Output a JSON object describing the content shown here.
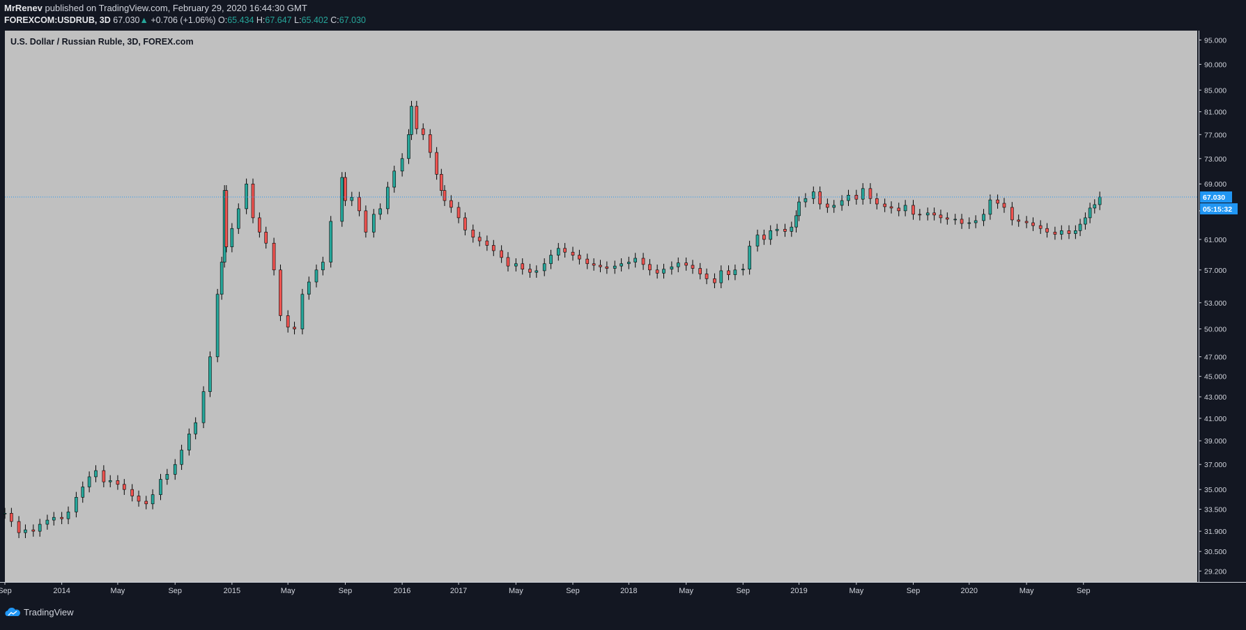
{
  "header": {
    "author": "MrRenev",
    "published_text": "published on TradingView.com, February 29, 2020 16:44:30 GMT",
    "symbol": "FOREXCOM:USDRUB, 3D",
    "last": "67.030",
    "arrow": "▲",
    "change": "+0.706 (+1.06%)",
    "o_label": "O:",
    "o_value": "65.434",
    "h_label": "H:",
    "h_value": "67.647",
    "l_label": "L:",
    "l_value": "65.402",
    "c_label": "C:",
    "c_value": "67.030"
  },
  "footer": {
    "brand": "TradingView"
  },
  "colors": {
    "page_bg": "#131722",
    "plot_bg": "#c0c0c0",
    "up": "#26a69a",
    "down": "#ef5350",
    "wick": "#000000",
    "price_line": "#2196f3",
    "price_label_bg": "#2196f3"
  },
  "chart_data": {
    "type": "candlestick",
    "title": "U.S. Dollar / Russian Ruble, 3D, FOREX.com",
    "y_scale": "log",
    "ylim": [
      28.5,
      97
    ],
    "y_ticks": [
      29.2,
      30.5,
      31.9,
      33.5,
      35.0,
      37.0,
      39.0,
      41.0,
      43.0,
      45.0,
      47.0,
      50.0,
      53.0,
      57.0,
      61.0,
      65.0,
      69.0,
      73.0,
      77.0,
      81.0,
      85.0,
      90.0,
      95.0
    ],
    "y_tick_labels": [
      "29.200",
      "30.500",
      "31.900",
      "33.500",
      "35.000",
      "37.000",
      "39.000",
      "41.000",
      "43.000",
      "45.000",
      "47.000",
      "50.000",
      "53.000",
      "57.000",
      "61.000",
      "65.000",
      "69.000",
      "73.000",
      "77.000",
      "81.000",
      "85.000",
      "90.000",
      "95.000"
    ],
    "x_range": [
      "2013-09-01",
      "2020-09-01"
    ],
    "x_ticks": [
      {
        "date": "2013-09-01",
        "label": "Sep"
      },
      {
        "date": "2014-01-01",
        "label": "2014"
      },
      {
        "date": "2014-05-01",
        "label": "May"
      },
      {
        "date": "2014-09-01",
        "label": "Sep"
      },
      {
        "date": "2015-01-01",
        "label": "2015"
      },
      {
        "date": "2015-05-01",
        "label": "May"
      },
      {
        "date": "2015-09-01",
        "label": "Sep"
      },
      {
        "date": "2016-01-01",
        "label": "2016"
      },
      {
        "date": "2016-05-01",
        "label": "2017"
      },
      {
        "date": "2016-09-01",
        "label": "May"
      },
      {
        "date": "2017-01-01",
        "label": "Sep"
      },
      {
        "date": "2017-05-01",
        "label": "2018"
      },
      {
        "date": "2017-09-01",
        "label": "May"
      },
      {
        "date": "2018-01-01",
        "label": "Sep"
      },
      {
        "date": "2018-05-01",
        "label": "2019"
      },
      {
        "date": "2018-09-01",
        "label": "May"
      },
      {
        "date": "2019-01-01",
        "label": "Sep"
      },
      {
        "date": "2019-05-01",
        "label": "2020"
      },
      {
        "date": "2019-09-01",
        "label": "May"
      },
      {
        "date": "2020-01-01",
        "label": "Sep"
      }
    ],
    "last_price": 67.03,
    "last_price_label": "67.030",
    "countdown_label": "05:15:32",
    "grid": false,
    "series": [
      {
        "points": [
          [
            "2013-09-01",
            33.2
          ],
          [
            "2013-09-15",
            32.6
          ],
          [
            "2013-10-01",
            31.8
          ],
          [
            "2013-10-15",
            32.0
          ],
          [
            "2013-11-01",
            31.9
          ],
          [
            "2013-11-15",
            32.4
          ],
          [
            "2013-12-01",
            32.7
          ],
          [
            "2013-12-15",
            32.9
          ],
          [
            "2014-01-01",
            32.8
          ],
          [
            "2014-01-15",
            33.3
          ],
          [
            "2014-02-01",
            34.4
          ],
          [
            "2014-02-15",
            35.2
          ],
          [
            "2014-03-01",
            36.0
          ],
          [
            "2014-03-15",
            36.5
          ],
          [
            "2014-04-01",
            35.6
          ],
          [
            "2014-04-15",
            35.7
          ],
          [
            "2014-05-01",
            35.4
          ],
          [
            "2014-05-15",
            35.0
          ],
          [
            "2014-06-01",
            34.5
          ],
          [
            "2014-06-15",
            34.1
          ],
          [
            "2014-07-01",
            33.9
          ],
          [
            "2014-07-15",
            34.6
          ],
          [
            "2014-08-01",
            35.8
          ],
          [
            "2014-08-15",
            36.2
          ],
          [
            "2014-09-01",
            37.0
          ],
          [
            "2014-09-15",
            38.2
          ],
          [
            "2014-10-01",
            39.6
          ],
          [
            "2014-10-15",
            40.6
          ],
          [
            "2014-11-01",
            43.5
          ],
          [
            "2014-11-15",
            47.0
          ],
          [
            "2014-12-01",
            54.0
          ],
          [
            "2014-12-10",
            58.0
          ],
          [
            "2014-12-16",
            68.0
          ],
          [
            "2014-12-20",
            60.0
          ],
          [
            "2015-01-01",
            62.5
          ],
          [
            "2015-01-15",
            65.3
          ],
          [
            "2015-02-01",
            69.0
          ],
          [
            "2015-02-15",
            64.0
          ],
          [
            "2015-03-01",
            62.0
          ],
          [
            "2015-03-15",
            60.5
          ],
          [
            "2015-04-01",
            57.0
          ],
          [
            "2015-04-15",
            51.5
          ],
          [
            "2015-05-01",
            50.2
          ],
          [
            "2015-05-15",
            50.0
          ],
          [
            "2015-06-01",
            54.0
          ],
          [
            "2015-06-15",
            55.5
          ],
          [
            "2015-07-01",
            57.0
          ],
          [
            "2015-07-15",
            58.0
          ],
          [
            "2015-08-01",
            63.5
          ],
          [
            "2015-08-25",
            70.0
          ],
          [
            "2015-09-01",
            66.5
          ],
          [
            "2015-09-15",
            67.0
          ],
          [
            "2015-10-01",
            65.0
          ],
          [
            "2015-10-15",
            62.0
          ],
          [
            "2015-11-01",
            64.5
          ],
          [
            "2015-11-15",
            65.3
          ],
          [
            "2015-12-01",
            68.5
          ],
          [
            "2015-12-15",
            71.0
          ],
          [
            "2016-01-01",
            73.0
          ],
          [
            "2016-01-15",
            77.0
          ],
          [
            "2016-01-21",
            82.0
          ],
          [
            "2016-02-01",
            78.0
          ],
          [
            "2016-02-15",
            77.0
          ],
          [
            "2016-03-01",
            74.0
          ],
          [
            "2016-03-15",
            70.5
          ],
          [
            "2016-03-25",
            68.0
          ],
          [
            "2016-04-01",
            66.5
          ],
          [
            "2016-04-15",
            65.5
          ],
          [
            "2016-05-01",
            64.0
          ],
          [
            "2016-05-15",
            62.3
          ],
          [
            "2016-06-01",
            61.3
          ],
          [
            "2016-06-15",
            60.8
          ],
          [
            "2016-07-01",
            60.2
          ],
          [
            "2016-07-15",
            59.5
          ],
          [
            "2016-08-01",
            58.6
          ],
          [
            "2016-08-15",
            57.5
          ],
          [
            "2016-09-01",
            57.8
          ],
          [
            "2016-09-15",
            57.1
          ],
          [
            "2016-10-01",
            56.7
          ],
          [
            "2016-10-15",
            56.9
          ],
          [
            "2016-11-01",
            57.8
          ],
          [
            "2016-11-15",
            58.9
          ],
          [
            "2016-12-01",
            59.8
          ],
          [
            "2016-12-15",
            59.3
          ],
          [
            "2017-01-01",
            58.9
          ],
          [
            "2017-01-15",
            58.4
          ],
          [
            "2017-02-01",
            57.8
          ],
          [
            "2017-02-15",
            57.6
          ],
          [
            "2017-03-01",
            57.4
          ],
          [
            "2017-03-15",
            57.2
          ],
          [
            "2017-04-01",
            57.5
          ],
          [
            "2017-04-15",
            57.8
          ],
          [
            "2017-05-01",
            58.0
          ],
          [
            "2017-05-15",
            58.5
          ],
          [
            "2017-06-01",
            57.7
          ],
          [
            "2017-06-15",
            57.0
          ],
          [
            "2017-07-01",
            56.6
          ],
          [
            "2017-07-15",
            57.1
          ],
          [
            "2017-08-01",
            57.4
          ],
          [
            "2017-08-15",
            57.9
          ],
          [
            "2017-09-01",
            57.6
          ],
          [
            "2017-09-15",
            57.2
          ],
          [
            "2017-10-01",
            56.5
          ],
          [
            "2017-10-15",
            55.9
          ],
          [
            "2017-11-01",
            55.4
          ],
          [
            "2017-11-15",
            56.9
          ],
          [
            "2017-12-01",
            56.4
          ],
          [
            "2017-12-15",
            57.0
          ],
          [
            "2018-01-01",
            57.1
          ],
          [
            "2018-01-15",
            60.1
          ],
          [
            "2018-02-01",
            61.6
          ],
          [
            "2018-02-15",
            61.0
          ],
          [
            "2018-03-01",
            62.2
          ],
          [
            "2018-03-15",
            62.4
          ],
          [
            "2018-04-01",
            62.1
          ],
          [
            "2018-04-15",
            62.7
          ],
          [
            "2018-04-25",
            64.3
          ],
          [
            "2018-05-01",
            66.3
          ],
          [
            "2018-05-15",
            66.8
          ],
          [
            "2018-06-01",
            67.8
          ],
          [
            "2018-06-15",
            66.0
          ],
          [
            "2018-07-01",
            65.5
          ],
          [
            "2018-07-15",
            65.8
          ],
          [
            "2018-08-01",
            66.5
          ],
          [
            "2018-08-15",
            67.3
          ],
          [
            "2018-09-01",
            66.7
          ],
          [
            "2018-09-15",
            68.3
          ],
          [
            "2018-10-01",
            66.8
          ],
          [
            "2018-10-15",
            66.0
          ],
          [
            "2018-11-01",
            65.6
          ],
          [
            "2018-11-15",
            65.4
          ],
          [
            "2018-12-01",
            65.0
          ],
          [
            "2018-12-15",
            65.8
          ],
          [
            "2019-01-01",
            64.5
          ],
          [
            "2019-01-15",
            64.4
          ],
          [
            "2019-02-01",
            64.7
          ],
          [
            "2019-02-15",
            64.4
          ],
          [
            "2019-03-01",
            64.0
          ],
          [
            "2019-03-15",
            63.8
          ],
          [
            "2019-04-01",
            63.8
          ],
          [
            "2019-04-15",
            63.2
          ],
          [
            "2019-05-01",
            63.3
          ],
          [
            "2019-05-15",
            63.6
          ],
          [
            "2019-06-01",
            64.5
          ],
          [
            "2019-06-15",
            66.6
          ],
          [
            "2019-07-01",
            66.1
          ],
          [
            "2019-07-15",
            65.5
          ],
          [
            "2019-08-01",
            63.7
          ],
          [
            "2019-08-15",
            63.5
          ],
          [
            "2019-09-01",
            63.3
          ],
          [
            "2019-09-15",
            62.9
          ],
          [
            "2019-10-01",
            62.5
          ],
          [
            "2019-10-15",
            62.0
          ],
          [
            "2019-11-01",
            61.7
          ],
          [
            "2019-11-15",
            62.2
          ],
          [
            "2019-12-01",
            61.8
          ],
          [
            "2019-12-15",
            62.2
          ],
          [
            "2019-12-25",
            63.1
          ],
          [
            "2020-01-05",
            64.0
          ],
          [
            "2020-01-15",
            65.4
          ],
          [
            "2020-01-25",
            65.9
          ],
          [
            "2020-02-05",
            67.03
          ]
        ]
      }
    ]
  }
}
